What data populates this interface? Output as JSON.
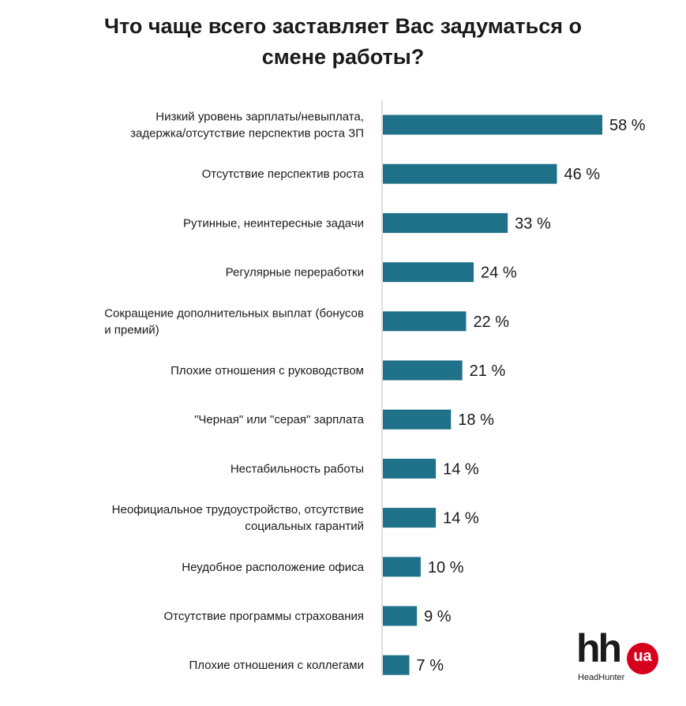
{
  "title_lines": [
    "Что чаще всего заставляет Вас задуматься о",
    "смене работы?"
  ],
  "chart_data": {
    "type": "bar",
    "orientation": "horizontal",
    "categories": [
      [
        "Низкий уровень зарплаты/невыплата,",
        "задержка/отсутствие перспектив роста ЗП"
      ],
      [
        "Отсутствие перспектив роста"
      ],
      [
        "Рутинные,  неинтересные  задачи"
      ],
      [
        "Регулярные переработки"
      ],
      [
        "Сокращение дополнительных выплат (бонусов",
        "и премий)"
      ],
      [
        "Плохие отношения с руководством"
      ],
      [
        "\"Черная\" или \"серая\" зарплата"
      ],
      [
        "Нестабильность работы"
      ],
      [
        "Неофициальное трудоустройство, отсутствие",
        "социальных гарантий"
      ],
      [
        "Неудобное расположение офиса"
      ],
      [
        "Отсутствие программы страхования"
      ],
      [
        "Плохие отношения с коллегами"
      ]
    ],
    "values": [
      58,
      46,
      33,
      24,
      22,
      21,
      18,
      14,
      14,
      10,
      9,
      7
    ],
    "value_labels": [
      "58 %",
      "46 %",
      "33 %",
      "24 %",
      "22 %",
      "21 %",
      "18 %",
      "14 %",
      "14 %",
      "10 %",
      "9 %",
      "7 %"
    ],
    "bar_color": "#1f7189",
    "grid": false,
    "legend": "none"
  },
  "logo": {
    "mark": "hh",
    "badge": "ua",
    "subtitle": "HeadHunter",
    "badge_color": "#d6001c"
  }
}
